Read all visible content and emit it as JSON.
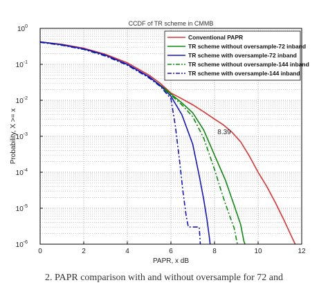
{
  "chart_data": {
    "type": "line",
    "title": "CCDF of TR scheme in CMMB",
    "xlabel": "PAPR, x dB",
    "ylabel": "Probability, X >= x",
    "xlim": [
      0,
      12
    ],
    "ylim": [
      1e-06,
      1
    ],
    "yscale": "log",
    "grid": true,
    "legend_position": "top-right",
    "xticks": [
      "0",
      "2",
      "4",
      "6",
      "8",
      "10",
      "12"
    ],
    "yticks": [
      {
        "base": "10",
        "exp": "0"
      },
      {
        "base": "10",
        "exp": "-1"
      },
      {
        "base": "10",
        "exp": "-2"
      },
      {
        "base": "10",
        "exp": "-3"
      },
      {
        "base": "10",
        "exp": "-4"
      },
      {
        "base": "10",
        "exp": "-5"
      },
      {
        "base": "10",
        "exp": "-6"
      }
    ],
    "annotation": {
      "text": "8.39",
      "x": 8.39,
      "y": 0.0021
    },
    "series": [
      {
        "name": "Conventional PAPR",
        "color": "#e03030",
        "dash": "solid",
        "points": [
          [
            0,
            0.42
          ],
          [
            1,
            0.36
          ],
          [
            2,
            0.28
          ],
          [
            3,
            0.19
          ],
          [
            4,
            0.11
          ],
          [
            5,
            0.05
          ],
          [
            5.5,
            0.03
          ],
          [
            6,
            0.016
          ],
          [
            6.5,
            0.011
          ],
          [
            7,
            0.0075
          ],
          [
            7.5,
            0.0048
          ],
          [
            8,
            0.003
          ],
          [
            8.39,
            0.0021
          ],
          [
            8.8,
            0.0013
          ],
          [
            9.2,
            0.0007
          ],
          [
            9.6,
            0.00028
          ],
          [
            10,
            0.0001
          ],
          [
            10.4,
            4e-05
          ],
          [
            10.8,
            1.4e-05
          ],
          [
            11.2,
            4.5e-06
          ],
          [
            11.5,
            1.8e-06
          ],
          [
            11.7,
            1e-06
          ]
        ]
      },
      {
        "name": "TR scheme without oversample-72 inband",
        "color": "#0a8a0a",
        "dash": "solid",
        "points": [
          [
            0,
            0.42
          ],
          [
            1,
            0.35
          ],
          [
            2,
            0.27
          ],
          [
            3,
            0.18
          ],
          [
            4,
            0.1
          ],
          [
            5,
            0.045
          ],
          [
            5.6,
            0.024
          ],
          [
            6,
            0.015
          ],
          [
            6.5,
            0.0085
          ],
          [
            7,
            0.0045
          ],
          [
            7.5,
            0.0015
          ],
          [
            8,
            0.0003
          ],
          [
            8.5,
            6e-05
          ],
          [
            8.9,
            1.2e-05
          ],
          [
            9.2,
            3.5e-06
          ],
          [
            9.35,
            1.2e-06
          ],
          [
            9.4,
            1e-06
          ]
        ]
      },
      {
        "name": "TR scheme with oversample-72 inband",
        "color": "#1010c8",
        "dash": "solid",
        "points": [
          [
            0,
            0.42
          ],
          [
            1,
            0.35
          ],
          [
            2,
            0.27
          ],
          [
            3,
            0.18
          ],
          [
            4,
            0.1
          ],
          [
            5,
            0.045
          ],
          [
            5.6,
            0.023
          ],
          [
            6,
            0.013
          ],
          [
            6.5,
            0.004
          ],
          [
            7,
            0.0006
          ],
          [
            7.3,
            8e-05
          ],
          [
            7.5,
            1.8e-05
          ],
          [
            7.65,
            5e-06
          ],
          [
            7.75,
            1.8e-06
          ],
          [
            7.8,
            1e-06
          ]
        ]
      },
      {
        "name": "TR scheme without oversample-144 inband",
        "color": "#0a8a0a",
        "dash": "dashdot",
        "points": [
          [
            0,
            0.41
          ],
          [
            1,
            0.34
          ],
          [
            2,
            0.26
          ],
          [
            3,
            0.17
          ],
          [
            4,
            0.095
          ],
          [
            5,
            0.042
          ],
          [
            5.6,
            0.022
          ],
          [
            6,
            0.014
          ],
          [
            6.5,
            0.0075
          ],
          [
            7,
            0.0035
          ],
          [
            7.5,
            0.0009
          ],
          [
            8,
            0.00012
          ],
          [
            8.4,
            2e-05
          ],
          [
            8.7,
            6e-06
          ],
          [
            8.9,
            2.8e-06
          ],
          [
            9,
            1.4e-06
          ],
          [
            9.05,
            1e-06
          ]
        ]
      },
      {
        "name": "TR scheme with oversample-144 inband",
        "color": "#1010c8",
        "dash": "dashdot",
        "points": [
          [
            0,
            0.41
          ],
          [
            1,
            0.34
          ],
          [
            2,
            0.26
          ],
          [
            3,
            0.17
          ],
          [
            4,
            0.095
          ],
          [
            5,
            0.042
          ],
          [
            5.5,
            0.025
          ],
          [
            6,
            0.011
          ],
          [
            6.2,
            0.002
          ],
          [
            6.4,
            0.0002
          ],
          [
            6.55,
            3e-05
          ],
          [
            6.7,
            6e-06
          ],
          [
            6.8,
            3e-06
          ],
          [
            7.3,
            3e-06
          ],
          [
            7.35,
            1e-06
          ]
        ]
      }
    ]
  },
  "caption": "2.   PAPR comparison with and without oversample for 72 and"
}
